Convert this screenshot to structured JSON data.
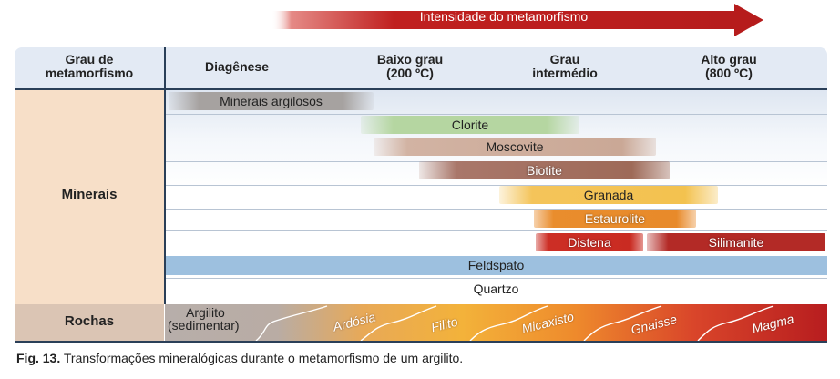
{
  "arrow": {
    "label": "Intensidade do metamorfismo"
  },
  "header": {
    "col0_line1": "Grau de",
    "col0_line2": "metamorfismo",
    "diagenese": "Diagênese",
    "baixo_line1": "Baixo grau",
    "baixo_line2": "(200 ºC)",
    "inter_line1": "Grau",
    "inter_line2": "intermédio",
    "alto_line1": "Alto grau",
    "alto_line2": "(800 ºC)"
  },
  "rows": {
    "minerais": "Minerais",
    "rochas": "Rochas"
  },
  "minerals": {
    "argilosos": "Minerais argilosos",
    "clorite": "Clorite",
    "moscovite": "Moscovite",
    "biotite": "Biotite",
    "granada": "Granada",
    "estaurolite": "Estaurolite",
    "distena": "Distena",
    "silimanite": "Silimanite",
    "feldspato": "Feldspato",
    "quartzo": "Quartzo"
  },
  "rocks": {
    "argilito_line1": "Argilito",
    "argilito_line2": "(sedimentar)",
    "ardosia": "Ardósia",
    "filito": "Filito",
    "micaxisto": "Micaxisto",
    "gnaisse": "Gnaisse",
    "magma": "Magma"
  },
  "caption": {
    "label": "Fig. 13.",
    "text": " Transformações mineralógicas durante o metamorfismo de um argilito."
  },
  "colors": {
    "arrow": "#c0201f",
    "header_bg": "#e3eaf4",
    "minerais_bg": "#f7dfc8",
    "rochas_bg": "#dbc5b4",
    "argilosos": "#9c9896",
    "clorite": "#a9cf93",
    "moscovite": "#caa896",
    "biotite": "#9e6a58",
    "granada": "#f3c24f",
    "estaurolite": "#e88a2a",
    "distena": "#c92b22",
    "silimanite": "#b32a26",
    "feldspato": "#98bcdd"
  }
}
